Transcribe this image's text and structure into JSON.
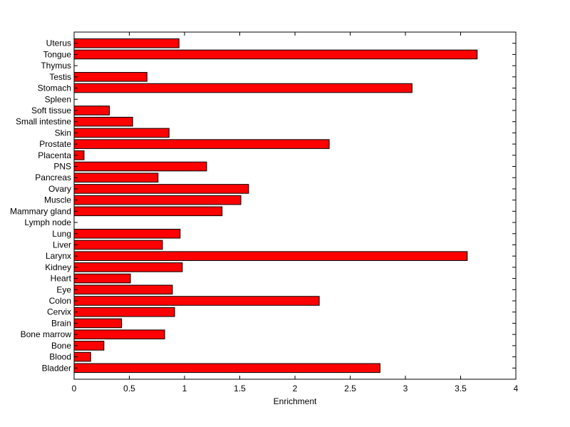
{
  "chart_data": {
    "type": "bar",
    "orientation": "horizontal",
    "title": "",
    "xlabel": "Enrichment",
    "ylabel": "",
    "xlim": [
      0,
      4
    ],
    "xticks": [
      "0",
      "0.5",
      "1",
      "1.5",
      "2",
      "2.5",
      "3",
      "3.5",
      "4"
    ],
    "grid": false,
    "bar_color": "#ff0000",
    "bar_edge_color": "#000000",
    "categories": [
      "Uterus",
      "Tongue",
      "Thymus",
      "Testis",
      "Stomach",
      "Spleen",
      "Soft tissue",
      "Small intestine",
      "Skin",
      "Prostate",
      "Placenta",
      "PNS",
      "Pancreas",
      "Ovary",
      "Muscle",
      "Mammary gland",
      "Lymph node",
      "Lung",
      "Liver",
      "Larynx",
      "Kidney",
      "Heart",
      "Eye",
      "Colon",
      "Cervix",
      "Brain",
      "Bone marrow",
      "Bone",
      "Blood",
      "Bladder"
    ],
    "values": [
      0.95,
      3.65,
      0,
      0.66,
      3.06,
      0,
      0.32,
      0.53,
      0.86,
      2.31,
      0.09,
      1.2,
      0.76,
      1.58,
      1.51,
      1.34,
      0,
      0.96,
      0.8,
      3.56,
      0.98,
      0.51,
      0.89,
      2.22,
      0.91,
      0.43,
      0.82,
      0.27,
      0.15,
      2.77
    ]
  }
}
